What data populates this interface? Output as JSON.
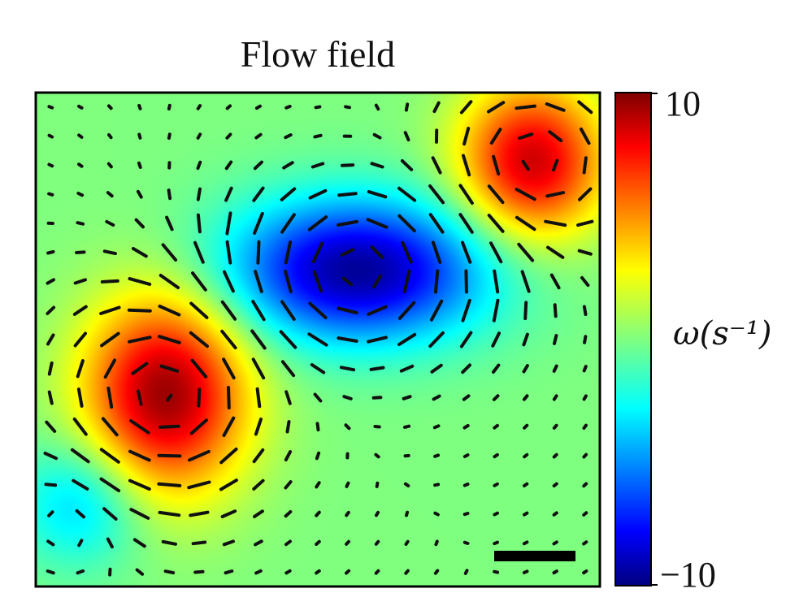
{
  "chart_data": {
    "type": "heatmap",
    "title": "Flow field",
    "overlay": "velocity vector field (short line segments)",
    "colormap": "jet",
    "colorbar": {
      "label": "ω(s⁻¹)",
      "min": -10,
      "max": 10,
      "ticks": [
        {
          "value": 10,
          "label": "10"
        },
        {
          "value": -10,
          "label": "−10"
        }
      ]
    },
    "vortices": [
      {
        "x": 0.88,
        "y": 0.86,
        "strength": 8.5,
        "sx": 0.09,
        "sy": 0.11
      },
      {
        "x": 0.57,
        "y": 0.64,
        "strength": -9.5,
        "sx": 0.16,
        "sy": 0.1
      },
      {
        "x": 0.23,
        "y": 0.39,
        "strength": 9.5,
        "sx": 0.1,
        "sy": 0.14
      },
      {
        "x": 0.08,
        "y": 0.17,
        "strength": -3.5,
        "sx": 0.08,
        "sy": 0.09
      }
    ],
    "scale_bar": true,
    "grid": false
  }
}
